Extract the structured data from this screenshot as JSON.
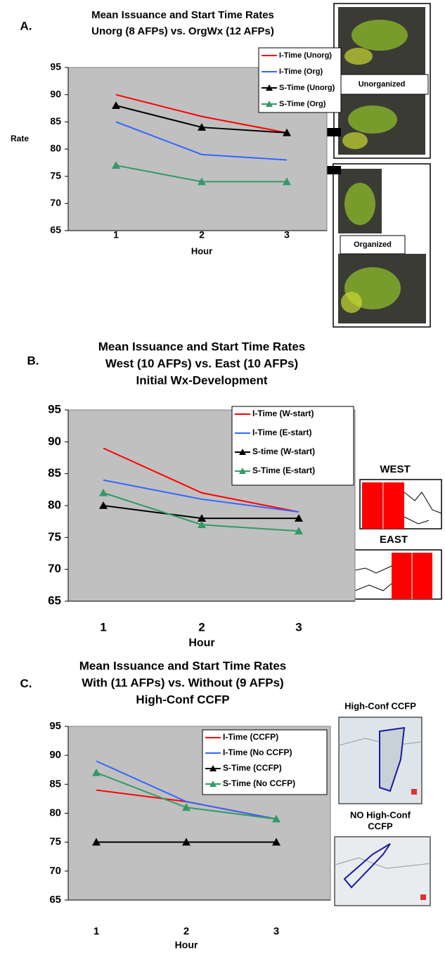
{
  "chart_data": [
    {
      "type": "line",
      "panel_label": "A.",
      "title": [
        "Mean Issuance and Start Time Rates",
        "Unorg (8 AFPs) vs. OrgWx (12 AFPs)"
      ],
      "xlabel": "Hour",
      "ylabel": "Rate",
      "categories": [
        "1",
        "2",
        "3"
      ],
      "ylim": [
        65,
        95
      ],
      "yticks": [
        65,
        70,
        75,
        80,
        85,
        90,
        95
      ],
      "series": [
        {
          "name": "I-Time (Unorg)",
          "color": "#ff0000",
          "marker": null,
          "values": [
            90,
            86,
            83
          ]
        },
        {
          "name": "I-Time (Org)",
          "color": "#3366ff",
          "marker": null,
          "values": [
            85,
            79,
            78
          ]
        },
        {
          "name": "S-Time (Unorg)",
          "color": "#000000",
          "marker": "triangle",
          "values": [
            88,
            84,
            83
          ]
        },
        {
          "name": "S-Time (Org)",
          "color": "#339966",
          "marker": "triangle",
          "values": [
            77,
            74,
            74
          ]
        }
      ],
      "image_labels": [
        "Unorganized",
        "Organized"
      ]
    },
    {
      "type": "line",
      "panel_label": "B.",
      "title": [
        "Mean Issuance and Start Time Rates",
        "West (10 AFPs) vs. East (10 AFPs)",
        "Initial Wx-Development"
      ],
      "xlabel": "Hour",
      "categories": [
        "1",
        "2",
        "3"
      ],
      "ylim": [
        65,
        95
      ],
      "yticks": [
        65,
        70,
        75,
        80,
        85,
        90,
        95
      ],
      "series": [
        {
          "name": "I-Time (W-start)",
          "color": "#ff0000",
          "marker": null,
          "values": [
            89,
            82,
            79
          ]
        },
        {
          "name": "I-Time (E-start)",
          "color": "#3366ff",
          "marker": null,
          "values": [
            84,
            81,
            79
          ]
        },
        {
          "name": "S-time (W-start)",
          "color": "#000000",
          "marker": "triangle",
          "values": [
            80,
            78,
            78
          ]
        },
        {
          "name": "S-Time (E-start)",
          "color": "#339966",
          "marker": "triangle",
          "values": [
            82,
            77,
            76
          ]
        }
      ],
      "image_labels": [
        "WEST",
        "EAST"
      ]
    },
    {
      "type": "line",
      "panel_label": "C.",
      "title": [
        "Mean Issuance and Start Time Rates",
        "With (11 AFPs) vs. Without (9 AFPs)",
        "High-Conf CCFP"
      ],
      "xlabel": "Hour",
      "categories": [
        "1",
        "2",
        "3"
      ],
      "ylim": [
        65,
        95
      ],
      "yticks": [
        65,
        70,
        75,
        80,
        85,
        90,
        95
      ],
      "series": [
        {
          "name": "I-Time (CCFP)",
          "color": "#ff0000",
          "marker": null,
          "values": [
            84,
            82,
            79
          ]
        },
        {
          "name": "I-Time (No CCFP)",
          "color": "#3366ff",
          "marker": null,
          "values": [
            89,
            82,
            79
          ]
        },
        {
          "name": "S-Time (CCFP)",
          "color": "#000000",
          "marker": "triangle",
          "values": [
            75,
            75,
            75
          ]
        },
        {
          "name": "S-Time (No CCFP)",
          "color": "#339966",
          "marker": "triangle",
          "values": [
            87,
            81,
            79
          ]
        }
      ],
      "image_labels": [
        "High-Conf CCFP",
        "NO High-Conf",
        "CCFP"
      ]
    }
  ]
}
